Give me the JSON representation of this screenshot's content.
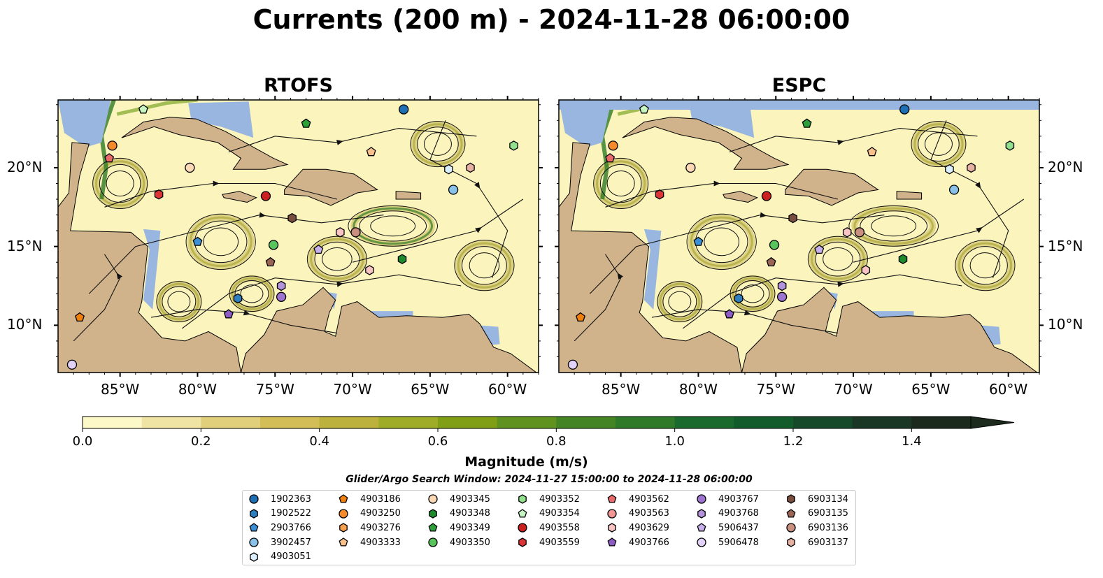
{
  "title": "Currents (200 m) - 2024-11-28 06:00:00",
  "panels": [
    {
      "title": "RTOFS"
    },
    {
      "title": "ESPC"
    }
  ],
  "map": {
    "lon_range": [
      -89,
      -58
    ],
    "lat_range": [
      7,
      24.3
    ],
    "lon_ticks": [
      "85°W",
      "80°W",
      "75°W",
      "70°W",
      "65°W",
      "60°W"
    ],
    "lat_ticks": [
      "20°N",
      "15°N",
      "10°N"
    ],
    "colors": {
      "ocean_low": "#fbf4bd",
      "ocean_mid": "#c9b85a",
      "ocean_high": "#2f7a24",
      "land": "#d1b38b",
      "masked_water": "#98b6e0",
      "streamline": "#111111"
    }
  },
  "colorbar": {
    "label": "Magnitude (m/s)",
    "range": [
      0,
      1.5
    ],
    "extend": "max",
    "ticks": [
      "0.0",
      "0.2",
      "0.4",
      "0.6",
      "0.8",
      "1.0",
      "1.2",
      "1.4"
    ],
    "colors": [
      "#fdf8c8",
      "#f0e4a4",
      "#e1cf7c",
      "#d2bd56",
      "#bcb13d",
      "#9eac27",
      "#809f16",
      "#5f921e",
      "#458425",
      "#2e7a29",
      "#1b6a2d",
      "#125c2c",
      "#16482a",
      "#1a3624",
      "#1b2a1c"
    ]
  },
  "search_window": "Glider/Argo Search Window: 2024-11-27 15:00:00 to 2024-11-28 06:00:00",
  "legend": [
    {
      "id": "1902363",
      "marker": "circle",
      "color": "#1f6fb4"
    },
    {
      "id": "1902522",
      "marker": "hexagon",
      "color": "#2e7fc0"
    },
    {
      "id": "2903766",
      "marker": "pentagon",
      "color": "#3b8fd4"
    },
    {
      "id": "3902457",
      "marker": "circle",
      "color": "#89c1e8"
    },
    {
      "id": "4903051",
      "marker": "hexagon",
      "color": "#dcefff"
    },
    {
      "id": "4903186",
      "marker": "pentagon",
      "color": "#f07f0c"
    },
    {
      "id": "4903250",
      "marker": "circle",
      "color": "#f48a2a"
    },
    {
      "id": "4903276",
      "marker": "hexagon",
      "color": "#f7a04e"
    },
    {
      "id": "4903333",
      "marker": "pentagon",
      "color": "#f8c08a"
    },
    {
      "id": "4903345",
      "marker": "circle",
      "color": "#fbd8b6"
    },
    {
      "id": "4903348",
      "marker": "hexagon",
      "color": "#1e8a2c"
    },
    {
      "id": "4903349",
      "marker": "pentagon",
      "color": "#2ea03a"
    },
    {
      "id": "4903350",
      "marker": "circle",
      "color": "#58c45c"
    },
    {
      "id": "4903352",
      "marker": "hexagon",
      "color": "#92e08e"
    },
    {
      "id": "4903354",
      "marker": "pentagon",
      "color": "#c8f5c4"
    },
    {
      "id": "4903558",
      "marker": "circle",
      "color": "#cc1f1f"
    },
    {
      "id": "4903559",
      "marker": "hexagon",
      "color": "#dd3535"
    },
    {
      "id": "4903562",
      "marker": "pentagon",
      "color": "#ea6a6a"
    },
    {
      "id": "4903563",
      "marker": "circle",
      "color": "#f29696"
    },
    {
      "id": "4903629",
      "marker": "hexagon",
      "color": "#f8c4c4"
    },
    {
      "id": "4903766",
      "marker": "pentagon",
      "color": "#8c5cc4"
    },
    {
      "id": "4903767",
      "marker": "circle",
      "color": "#9d74cf"
    },
    {
      "id": "4903768",
      "marker": "hexagon",
      "color": "#b293dc"
    },
    {
      "id": "5906437",
      "marker": "pentagon",
      "color": "#c8b0ea"
    },
    {
      "id": "5906478",
      "marker": "circle",
      "color": "#e2d2f7"
    },
    {
      "id": "6903134",
      "marker": "hexagon",
      "color": "#7a4e3e"
    },
    {
      "id": "6903135",
      "marker": "pentagon",
      "color": "#9a6554"
    },
    {
      "id": "6903136",
      "marker": "circle",
      "color": "#c98f80"
    },
    {
      "id": "6903137",
      "marker": "hexagon",
      "color": "#e6b0a3"
    }
  ],
  "floats": {
    "RTOFS": [
      {
        "id": "1902363",
        "lon": -66.7,
        "lat": 23.7
      },
      {
        "id": "4903354",
        "lon": -83.5,
        "lat": 23.7
      },
      {
        "id": "4903349",
        "lon": -73.0,
        "lat": 22.8
      },
      {
        "id": "4903250",
        "lon": -85.5,
        "lat": 21.4
      },
      {
        "id": "4903333",
        "lon": -68.8,
        "lat": 21.0
      },
      {
        "id": "4903352",
        "lon": -59.6,
        "lat": 21.4
      },
      {
        "id": "4903562",
        "lon": -85.7,
        "lat": 20.6
      },
      {
        "id": "4903345",
        "lon": -80.5,
        "lat": 20.0
      },
      {
        "id": "4903051",
        "lon": -63.8,
        "lat": 19.9
      },
      {
        "id": "6903137",
        "lon": -62.4,
        "lat": 20.0
      },
      {
        "id": "4903559",
        "lon": -82.5,
        "lat": 18.3
      },
      {
        "id": "4903558",
        "lon": -75.6,
        "lat": 18.2
      },
      {
        "id": "3902457",
        "lon": -63.5,
        "lat": 18.6
      },
      {
        "id": "6903134",
        "lon": -73.9,
        "lat": 16.8
      },
      {
        "id": "4903629",
        "lon": -70.8,
        "lat": 15.9
      },
      {
        "id": "6903136",
        "lon": -69.8,
        "lat": 15.9
      },
      {
        "id": "2903766",
        "lon": -80.0,
        "lat": 15.3
      },
      {
        "id": "4903350",
        "lon": -75.1,
        "lat": 15.1
      },
      {
        "id": "5906437",
        "lon": -72.2,
        "lat": 14.8
      },
      {
        "id": "6903135",
        "lon": -75.3,
        "lat": 14.0
      },
      {
        "id": "4903348",
        "lon": -66.8,
        "lat": 14.2
      },
      {
        "id": "4903629",
        "lon": -68.9,
        "lat": 13.5
      },
      {
        "id": "4903768",
        "lon": -74.6,
        "lat": 12.5
      },
      {
        "id": "1902522",
        "lon": -77.4,
        "lat": 11.7
      },
      {
        "id": "4903767",
        "lon": -74.6,
        "lat": 11.8
      },
      {
        "id": "4903766",
        "lon": -78.0,
        "lat": 10.7
      },
      {
        "id": "4903186",
        "lon": -87.6,
        "lat": 10.5
      },
      {
        "id": "5906478",
        "lon": -88.1,
        "lat": 7.5
      }
    ],
    "ESPC": [
      {
        "id": "1902363",
        "lon": -66.7,
        "lat": 23.7
      },
      {
        "id": "4903354",
        "lon": -83.5,
        "lat": 23.7
      },
      {
        "id": "4903349",
        "lon": -73.0,
        "lat": 22.8
      },
      {
        "id": "4903250",
        "lon": -85.5,
        "lat": 21.4
      },
      {
        "id": "4903333",
        "lon": -68.8,
        "lat": 21.0
      },
      {
        "id": "4903352",
        "lon": -59.9,
        "lat": 21.4
      },
      {
        "id": "4903562",
        "lon": -85.7,
        "lat": 20.6
      },
      {
        "id": "4903345",
        "lon": -80.5,
        "lat": 20.0
      },
      {
        "id": "4903051",
        "lon": -63.8,
        "lat": 19.9
      },
      {
        "id": "6903137",
        "lon": -62.4,
        "lat": 20.0
      },
      {
        "id": "4903559",
        "lon": -82.5,
        "lat": 18.3
      },
      {
        "id": "4903558",
        "lon": -75.6,
        "lat": 18.2
      },
      {
        "id": "3902457",
        "lon": -63.5,
        "lat": 18.6
      },
      {
        "id": "6903134",
        "lon": -73.9,
        "lat": 16.8
      },
      {
        "id": "4903629",
        "lon": -70.4,
        "lat": 15.9
      },
      {
        "id": "6903136",
        "lon": -69.6,
        "lat": 15.9
      },
      {
        "id": "2903766",
        "lon": -80.0,
        "lat": 15.3
      },
      {
        "id": "4903350",
        "lon": -75.1,
        "lat": 15.1
      },
      {
        "id": "5906437",
        "lon": -72.2,
        "lat": 14.8
      },
      {
        "id": "6903135",
        "lon": -75.3,
        "lat": 14.0
      },
      {
        "id": "4903348",
        "lon": -66.8,
        "lat": 14.2
      },
      {
        "id": "4903629",
        "lon": -69.2,
        "lat": 13.5
      },
      {
        "id": "4903768",
        "lon": -74.6,
        "lat": 12.5
      },
      {
        "id": "1902522",
        "lon": -77.4,
        "lat": 11.7
      },
      {
        "id": "4903767",
        "lon": -74.6,
        "lat": 11.8
      },
      {
        "id": "4903766",
        "lon": -78.0,
        "lat": 10.7
      },
      {
        "id": "4903186",
        "lon": -87.6,
        "lat": 10.5
      },
      {
        "id": "5906478",
        "lon": -88.1,
        "lat": 7.5
      }
    ]
  }
}
